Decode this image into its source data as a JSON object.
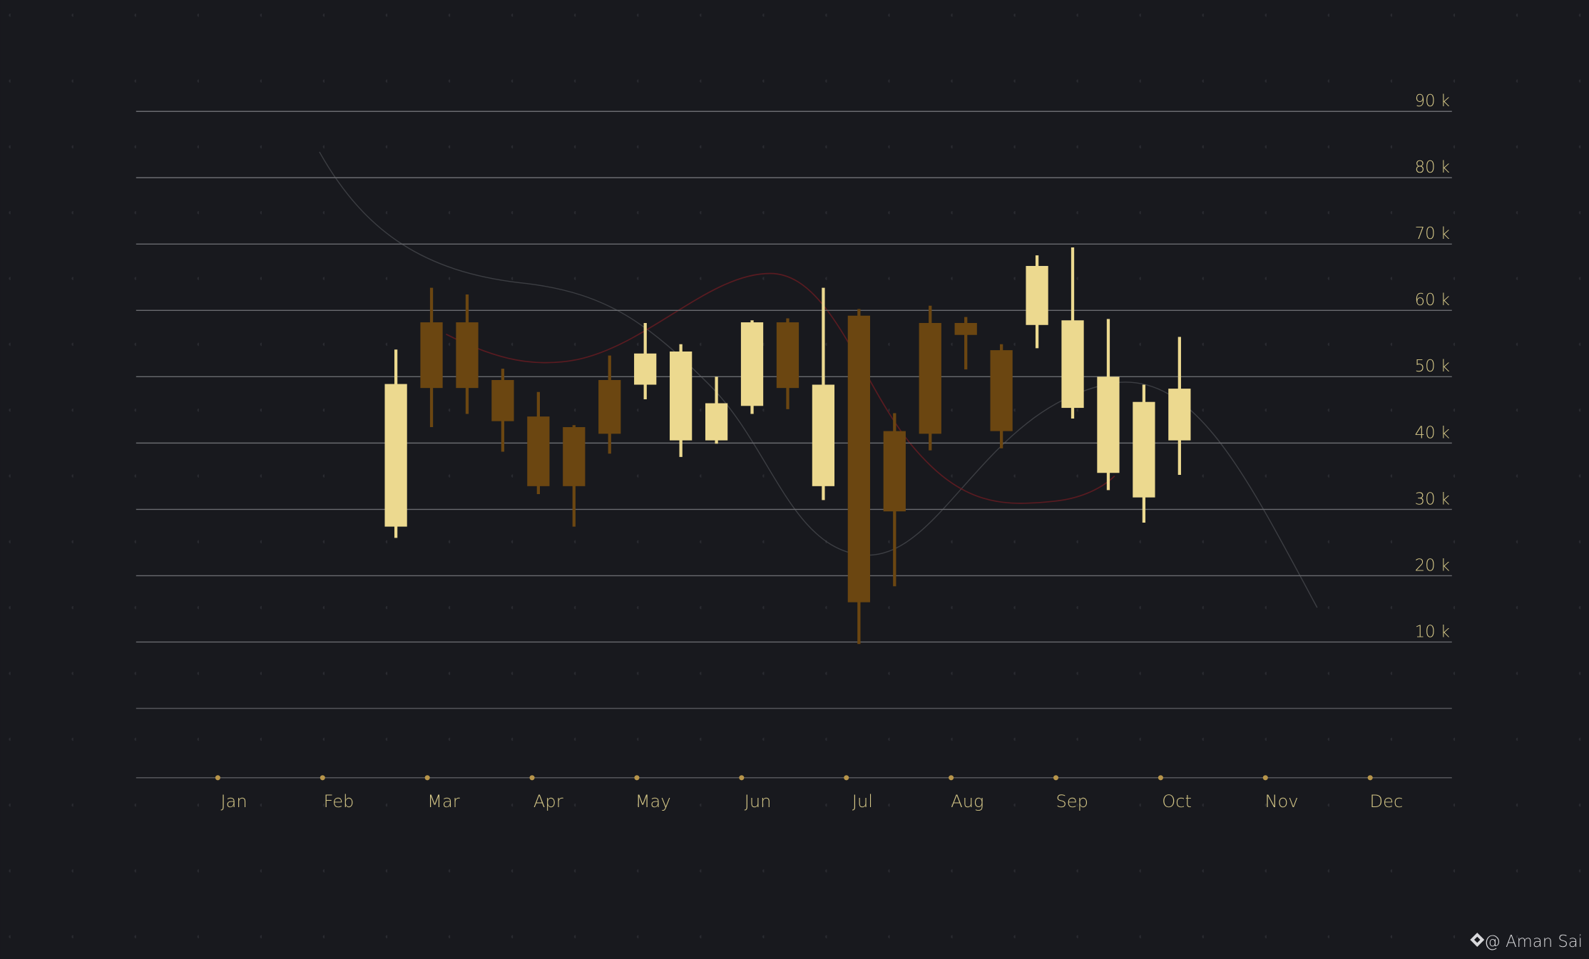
{
  "chart_data": {
    "type": "candlestick",
    "x": [
      2.7,
      3.04,
      3.38,
      3.72,
      4.06,
      4.4,
      4.74,
      5.08,
      5.42,
      5.76,
      6.1,
      6.44,
      6.78,
      7.12,
      7.46,
      7.8,
      8.14,
      8.48,
      8.82,
      9.16,
      9.5,
      9.84,
      10.18
    ],
    "open": [
      27.4,
      58.2,
      58.2,
      49.5,
      44.0,
      42.4,
      49.5,
      48.8,
      40.4,
      40.4,
      45.6,
      58.2,
      33.5,
      59.2,
      41.8,
      58.1,
      58.1,
      54.0,
      57.8,
      45.3,
      35.5,
      31.8,
      40.4
    ],
    "high": [
      54.1,
      63.4,
      62.4,
      51.2,
      47.7,
      42.7,
      53.2,
      58.1,
      54.9,
      50.0,
      58.5,
      58.8,
      63.4,
      60.2,
      44.5,
      60.7,
      59.0,
      54.9,
      68.3,
      69.5,
      58.7,
      48.8,
      56.0
    ],
    "low": [
      25.7,
      42.4,
      44.4,
      38.7,
      32.3,
      27.4,
      38.4,
      46.6,
      37.9,
      39.9,
      44.4,
      45.1,
      31.4,
      9.7,
      18.4,
      38.9,
      51.1,
      39.2,
      54.3,
      43.7,
      32.9,
      28.0,
      35.2
    ],
    "close": [
      48.9,
      48.3,
      48.3,
      43.3,
      33.5,
      33.5,
      41.4,
      53.5,
      53.8,
      46.0,
      58.2,
      48.3,
      48.8,
      16.0,
      29.7,
      41.4,
      56.3,
      41.8,
      66.7,
      58.5,
      50.0,
      46.2,
      48.2
    ],
    "up_color": "#ecd98f",
    "down_color": "#6b4611",
    "xlim": [
      0.22,
      12.78
    ],
    "xticks": [
      {
        "value": 1,
        "label": "Jan"
      },
      {
        "value": 2,
        "label": "Feb"
      },
      {
        "value": 3,
        "label": "Mar"
      },
      {
        "value": 4,
        "label": "Apr"
      },
      {
        "value": 5,
        "label": "May"
      },
      {
        "value": 6,
        "label": "Jun"
      },
      {
        "value": 7,
        "label": "Jul"
      },
      {
        "value": 8,
        "label": "Aug"
      },
      {
        "value": 9,
        "label": "Sep"
      },
      {
        "value": 10,
        "label": "Oct"
      },
      {
        "value": 11,
        "label": "Nov"
      },
      {
        "value": 12,
        "label": "Dec"
      }
    ],
    "ylim": [
      0,
      95
    ],
    "yticks": [
      {
        "value": 10,
        "label": "10 k"
      },
      {
        "value": 20,
        "label": "20 k"
      },
      {
        "value": 30,
        "label": "30 k"
      },
      {
        "value": 40,
        "label": "40 k"
      },
      {
        "value": 50,
        "label": "50 k"
      },
      {
        "value": 60,
        "label": "60 k"
      },
      {
        "value": 70,
        "label": "70 k"
      },
      {
        "value": 80,
        "label": "80 k"
      },
      {
        "value": 90,
        "label": "90 k"
      }
    ],
    "grid": true,
    "credit": "@ Aman Sai"
  }
}
